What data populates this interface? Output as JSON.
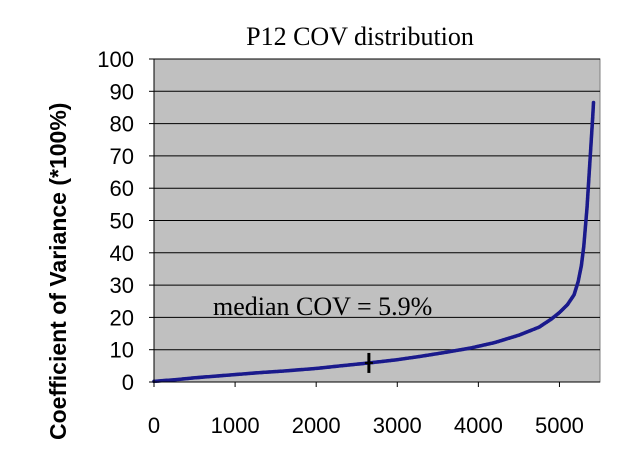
{
  "chart_data": {
    "type": "scatter",
    "title": "P12 COV distribution",
    "xlabel": "",
    "ylabel": "Coefficient of Variance (*100%)",
    "xlim": [
      0,
      5500
    ],
    "ylim": [
      0,
      100
    ],
    "x_ticks": [
      "0",
      "1000",
      "2000",
      "3000",
      "4000",
      "5000"
    ],
    "y_ticks": [
      "0",
      "10",
      "20",
      "30",
      "40",
      "50",
      "60",
      "70",
      "80",
      "90",
      "100"
    ],
    "grid": "horizontal",
    "annotation": "median COV = 5.9%",
    "median_marker": {
      "x": 2650,
      "y": 5.9
    },
    "series": [
      {
        "color": "#1a1a8c",
        "points": [
          [
            0,
            0.2
          ],
          [
            100,
            0.4
          ],
          [
            300,
            0.8
          ],
          [
            500,
            1.3
          ],
          [
            700,
            1.7
          ],
          [
            1000,
            2.3
          ],
          [
            1300,
            2.9
          ],
          [
            1600,
            3.4
          ],
          [
            2000,
            4.2
          ],
          [
            2300,
            5.0
          ],
          [
            2650,
            5.9
          ],
          [
            3000,
            6.9
          ],
          [
            3300,
            8.0
          ],
          [
            3600,
            9.2
          ],
          [
            3900,
            10.5
          ],
          [
            4200,
            12.2
          ],
          [
            4500,
            14.5
          ],
          [
            4750,
            17.0
          ],
          [
            4900,
            19.5
          ],
          [
            5000,
            21.5
          ],
          [
            5100,
            24.0
          ],
          [
            5180,
            27.0
          ],
          [
            5230,
            31.0
          ],
          [
            5270,
            36.0
          ],
          [
            5300,
            42.0
          ],
          [
            5320,
            48.0
          ],
          [
            5340,
            54.0
          ],
          [
            5355,
            60.0
          ],
          [
            5370,
            66.0
          ],
          [
            5385,
            72.0
          ],
          [
            5400,
            78.0
          ],
          [
            5410,
            82.0
          ],
          [
            5420,
            86.5
          ]
        ]
      }
    ],
    "colors": {
      "plot_background": "#c0c0c0",
      "gridline": "#000000",
      "series": "#1a1a8c"
    }
  }
}
